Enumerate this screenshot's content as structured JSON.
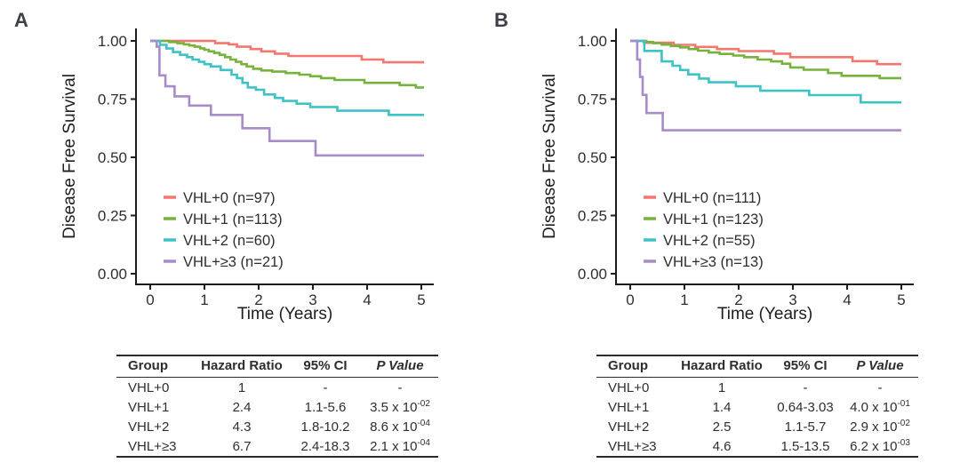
{
  "chart_data": [
    {
      "type": "line",
      "step": true,
      "panel_label": "A",
      "title": "",
      "xlabel": "Time (Years)",
      "ylabel": "Disease Free Survival",
      "xlim": [
        0,
        5.05
      ],
      "ylim": [
        0,
        1
      ],
      "grid": false,
      "legend_position": "inside bottom-left",
      "x_ticks": [
        {
          "value": 0,
          "label": "0"
        },
        {
          "value": 1,
          "label": "1"
        },
        {
          "value": 2,
          "label": "2"
        },
        {
          "value": 3,
          "label": "3"
        },
        {
          "value": 4,
          "label": "4"
        },
        {
          "value": 5,
          "label": "5"
        }
      ],
      "y_ticks": [
        {
          "value": 1.0,
          "label": "1.00"
        },
        {
          "value": 0.75,
          "label": "0.75"
        },
        {
          "value": 0.5,
          "label": "0.50"
        },
        {
          "value": 0.25,
          "label": "0.25"
        },
        {
          "value": 0.0,
          "label": "0.00"
        }
      ],
      "series": [
        {
          "name": "VHL+0",
          "n": 97,
          "label": "VHL+0 (n=97)",
          "color": "#F4766E",
          "points": [
            [
              0,
              1.0
            ],
            [
              1.2,
              0.99
            ],
            [
              1.45,
              0.985
            ],
            [
              1.6,
              0.975
            ],
            [
              1.85,
              0.965
            ],
            [
              2.05,
              0.955
            ],
            [
              2.3,
              0.945
            ],
            [
              2.55,
              0.935
            ],
            [
              3.9,
              0.92
            ],
            [
              4.3,
              0.908
            ],
            [
              5.05,
              0.908
            ]
          ]
        },
        {
          "name": "VHL+1",
          "n": 113,
          "label": "VHL+1 (n=113)",
          "color": "#77B13E",
          "points": [
            [
              0,
              1.0
            ],
            [
              0.35,
              0.995
            ],
            [
              0.5,
              0.99
            ],
            [
              0.62,
              0.985
            ],
            [
              0.72,
              0.98
            ],
            [
              0.82,
              0.975
            ],
            [
              0.92,
              0.968
            ],
            [
              1.0,
              0.962
            ],
            [
              1.08,
              0.955
            ],
            [
              1.18,
              0.948
            ],
            [
              1.28,
              0.94
            ],
            [
              1.38,
              0.93
            ],
            [
              1.48,
              0.92
            ],
            [
              1.58,
              0.91
            ],
            [
              1.68,
              0.9
            ],
            [
              1.78,
              0.89
            ],
            [
              1.9,
              0.88
            ],
            [
              2.05,
              0.873
            ],
            [
              2.25,
              0.868
            ],
            [
              2.5,
              0.862
            ],
            [
              2.75,
              0.855
            ],
            [
              2.95,
              0.848
            ],
            [
              3.15,
              0.84
            ],
            [
              3.4,
              0.832
            ],
            [
              3.95,
              0.82
            ],
            [
              4.6,
              0.81
            ],
            [
              4.9,
              0.8
            ],
            [
              5.05,
              0.8
            ]
          ]
        },
        {
          "name": "VHL+2",
          "n": 60,
          "label": "VHL+2 (n=60)",
          "color": "#3FC2C6",
          "points": [
            [
              0,
              1.0
            ],
            [
              0.18,
              0.983
            ],
            [
              0.3,
              0.967
            ],
            [
              0.42,
              0.952
            ],
            [
              0.55,
              0.94
            ],
            [
              0.68,
              0.93
            ],
            [
              0.78,
              0.92
            ],
            [
              0.9,
              0.91
            ],
            [
              1.0,
              0.9
            ],
            [
              1.12,
              0.89
            ],
            [
              1.3,
              0.875
            ],
            [
              1.5,
              0.855
            ],
            [
              1.6,
              0.84
            ],
            [
              1.7,
              0.82
            ],
            [
              1.8,
              0.8
            ],
            [
              1.95,
              0.79
            ],
            [
              2.1,
              0.77
            ],
            [
              2.3,
              0.755
            ],
            [
              2.45,
              0.742
            ],
            [
              2.7,
              0.73
            ],
            [
              2.95,
              0.716
            ],
            [
              3.45,
              0.7
            ],
            [
              4.4,
              0.682
            ],
            [
              5.05,
              0.682
            ]
          ]
        },
        {
          "name": "VHL+≥3",
          "n": 21,
          "label": "VHL+≥3 (n=21)",
          "color": "#A78CC9",
          "points": [
            [
              0,
              1.0
            ],
            [
              0.12,
              0.975
            ],
            [
              0.17,
              0.852
            ],
            [
              0.28,
              0.805
            ],
            [
              0.45,
              0.762
            ],
            [
              0.72,
              0.722
            ],
            [
              1.12,
              0.682
            ],
            [
              1.7,
              0.625
            ],
            [
              2.2,
              0.57
            ],
            [
              3.05,
              0.508
            ],
            [
              5.05,
              0.508
            ]
          ]
        }
      ],
      "table": {
        "headers": [
          "Group",
          "Hazard Ratio",
          "95% CI",
          "P Value"
        ],
        "rows": [
          {
            "group": "VHL+0",
            "hr": "1",
            "ci": "-",
            "p": "-",
            "p_exp": ""
          },
          {
            "group": "VHL+1",
            "hr": "2.4",
            "ci": "1.1-5.6",
            "p": "3.5 x 10",
            "p_exp": "-02"
          },
          {
            "group": "VHL+2",
            "hr": "4.3",
            "ci": "1.8-10.2",
            "p": "8.6 x 10",
            "p_exp": "-04"
          },
          {
            "group": "VHL+≥3",
            "hr": "6.7",
            "ci": "2.4-18.3",
            "p": "2.1 x 10",
            "p_exp": "-04"
          }
        ]
      }
    },
    {
      "type": "line",
      "step": true,
      "panel_label": "B",
      "title": "",
      "xlabel": "Time (Years)",
      "ylabel": "Disease Free Survival",
      "xlim": [
        0,
        5.0
      ],
      "ylim": [
        0,
        1
      ],
      "grid": false,
      "legend_position": "inside bottom-left",
      "x_ticks": [
        {
          "value": 0,
          "label": "0"
        },
        {
          "value": 1,
          "label": "1"
        },
        {
          "value": 2,
          "label": "2"
        },
        {
          "value": 3,
          "label": "3"
        },
        {
          "value": 4,
          "label": "4"
        },
        {
          "value": 5,
          "label": "5"
        }
      ],
      "y_ticks": [
        {
          "value": 1.0,
          "label": "1.00"
        },
        {
          "value": 0.75,
          "label": "0.75"
        },
        {
          "value": 0.5,
          "label": "0.50"
        },
        {
          "value": 0.25,
          "label": "0.25"
        },
        {
          "value": 0.0,
          "label": "0.00"
        }
      ],
      "series": [
        {
          "name": "VHL+0",
          "n": 111,
          "label": "VHL+0 (n=111)",
          "color": "#F4766E",
          "points": [
            [
              0,
              1.0
            ],
            [
              0.3,
              0.992
            ],
            [
              0.8,
              0.983
            ],
            [
              1.2,
              0.974
            ],
            [
              1.6,
              0.965
            ],
            [
              2.0,
              0.956
            ],
            [
              2.65,
              0.945
            ],
            [
              2.95,
              0.93
            ],
            [
              4.1,
              0.913
            ],
            [
              4.55,
              0.9
            ],
            [
              5.0,
              0.9
            ]
          ]
        },
        {
          "name": "VHL+1",
          "n": 123,
          "label": "VHL+1 (n=123)",
          "color": "#77B13E",
          "points": [
            [
              0,
              1.0
            ],
            [
              0.25,
              0.995
            ],
            [
              0.42,
              0.99
            ],
            [
              0.58,
              0.984
            ],
            [
              0.75,
              0.978
            ],
            [
              0.92,
              0.972
            ],
            [
              1.08,
              0.965
            ],
            [
              1.25,
              0.958
            ],
            [
              1.45,
              0.95
            ],
            [
              1.65,
              0.944
            ],
            [
              1.9,
              0.937
            ],
            [
              2.1,
              0.93
            ],
            [
              2.35,
              0.92
            ],
            [
              2.6,
              0.912
            ],
            [
              2.8,
              0.902
            ],
            [
              2.95,
              0.886
            ],
            [
              3.2,
              0.876
            ],
            [
              3.65,
              0.862
            ],
            [
              3.9,
              0.85
            ],
            [
              4.6,
              0.84
            ],
            [
              5.0,
              0.84
            ]
          ]
        },
        {
          "name": "VHL+2",
          "n": 55,
          "label": "VHL+2 (n=55)",
          "color": "#3FC2C6",
          "points": [
            [
              0,
              1.0
            ],
            [
              0.26,
              0.957
            ],
            [
              0.58,
              0.912
            ],
            [
              0.78,
              0.893
            ],
            [
              0.92,
              0.875
            ],
            [
              1.07,
              0.856
            ],
            [
              1.27,
              0.838
            ],
            [
              1.45,
              0.822
            ],
            [
              1.95,
              0.805
            ],
            [
              2.4,
              0.786
            ],
            [
              3.3,
              0.767
            ],
            [
              4.25,
              0.736
            ],
            [
              5.0,
              0.736
            ]
          ]
        },
        {
          "name": "VHL+≥3",
          "n": 13,
          "label": "VHL+≥3 (n=13)",
          "color": "#A78CC9",
          "points": [
            [
              0,
              1.0
            ],
            [
              0.13,
              0.92
            ],
            [
              0.18,
              0.845
            ],
            [
              0.23,
              0.768
            ],
            [
              0.3,
              0.69
            ],
            [
              0.6,
              0.616
            ],
            [
              5.0,
              0.616
            ]
          ]
        }
      ],
      "table": {
        "headers": [
          "Group",
          "Hazard Ratio",
          "95% CI",
          "P Value"
        ],
        "rows": [
          {
            "group": "VHL+0",
            "hr": "1",
            "ci": "-",
            "p": "-",
            "p_exp": ""
          },
          {
            "group": "VHL+1",
            "hr": "1.4",
            "ci": "0.64-3.03",
            "p": "4.0 x 10",
            "p_exp": "-01"
          },
          {
            "group": "VHL+2",
            "hr": "2.5",
            "ci": "1.1-5.7",
            "p": "2.9 x 10",
            "p_exp": "-02"
          },
          {
            "group": "VHL+≥3",
            "hr": "4.6",
            "ci": "1.5-13.5",
            "p": "6.2 x 10",
            "p_exp": "-03"
          }
        ]
      }
    }
  ],
  "colors": {
    "axis": "#1d1d1d",
    "text": "#2e2e2e",
    "panel_label": "#3d4147",
    "vhl0": "#F4766E",
    "vhl1": "#77B13E",
    "vhl2": "#3FC2C6",
    "vhl3plus": "#A78CC9"
  }
}
